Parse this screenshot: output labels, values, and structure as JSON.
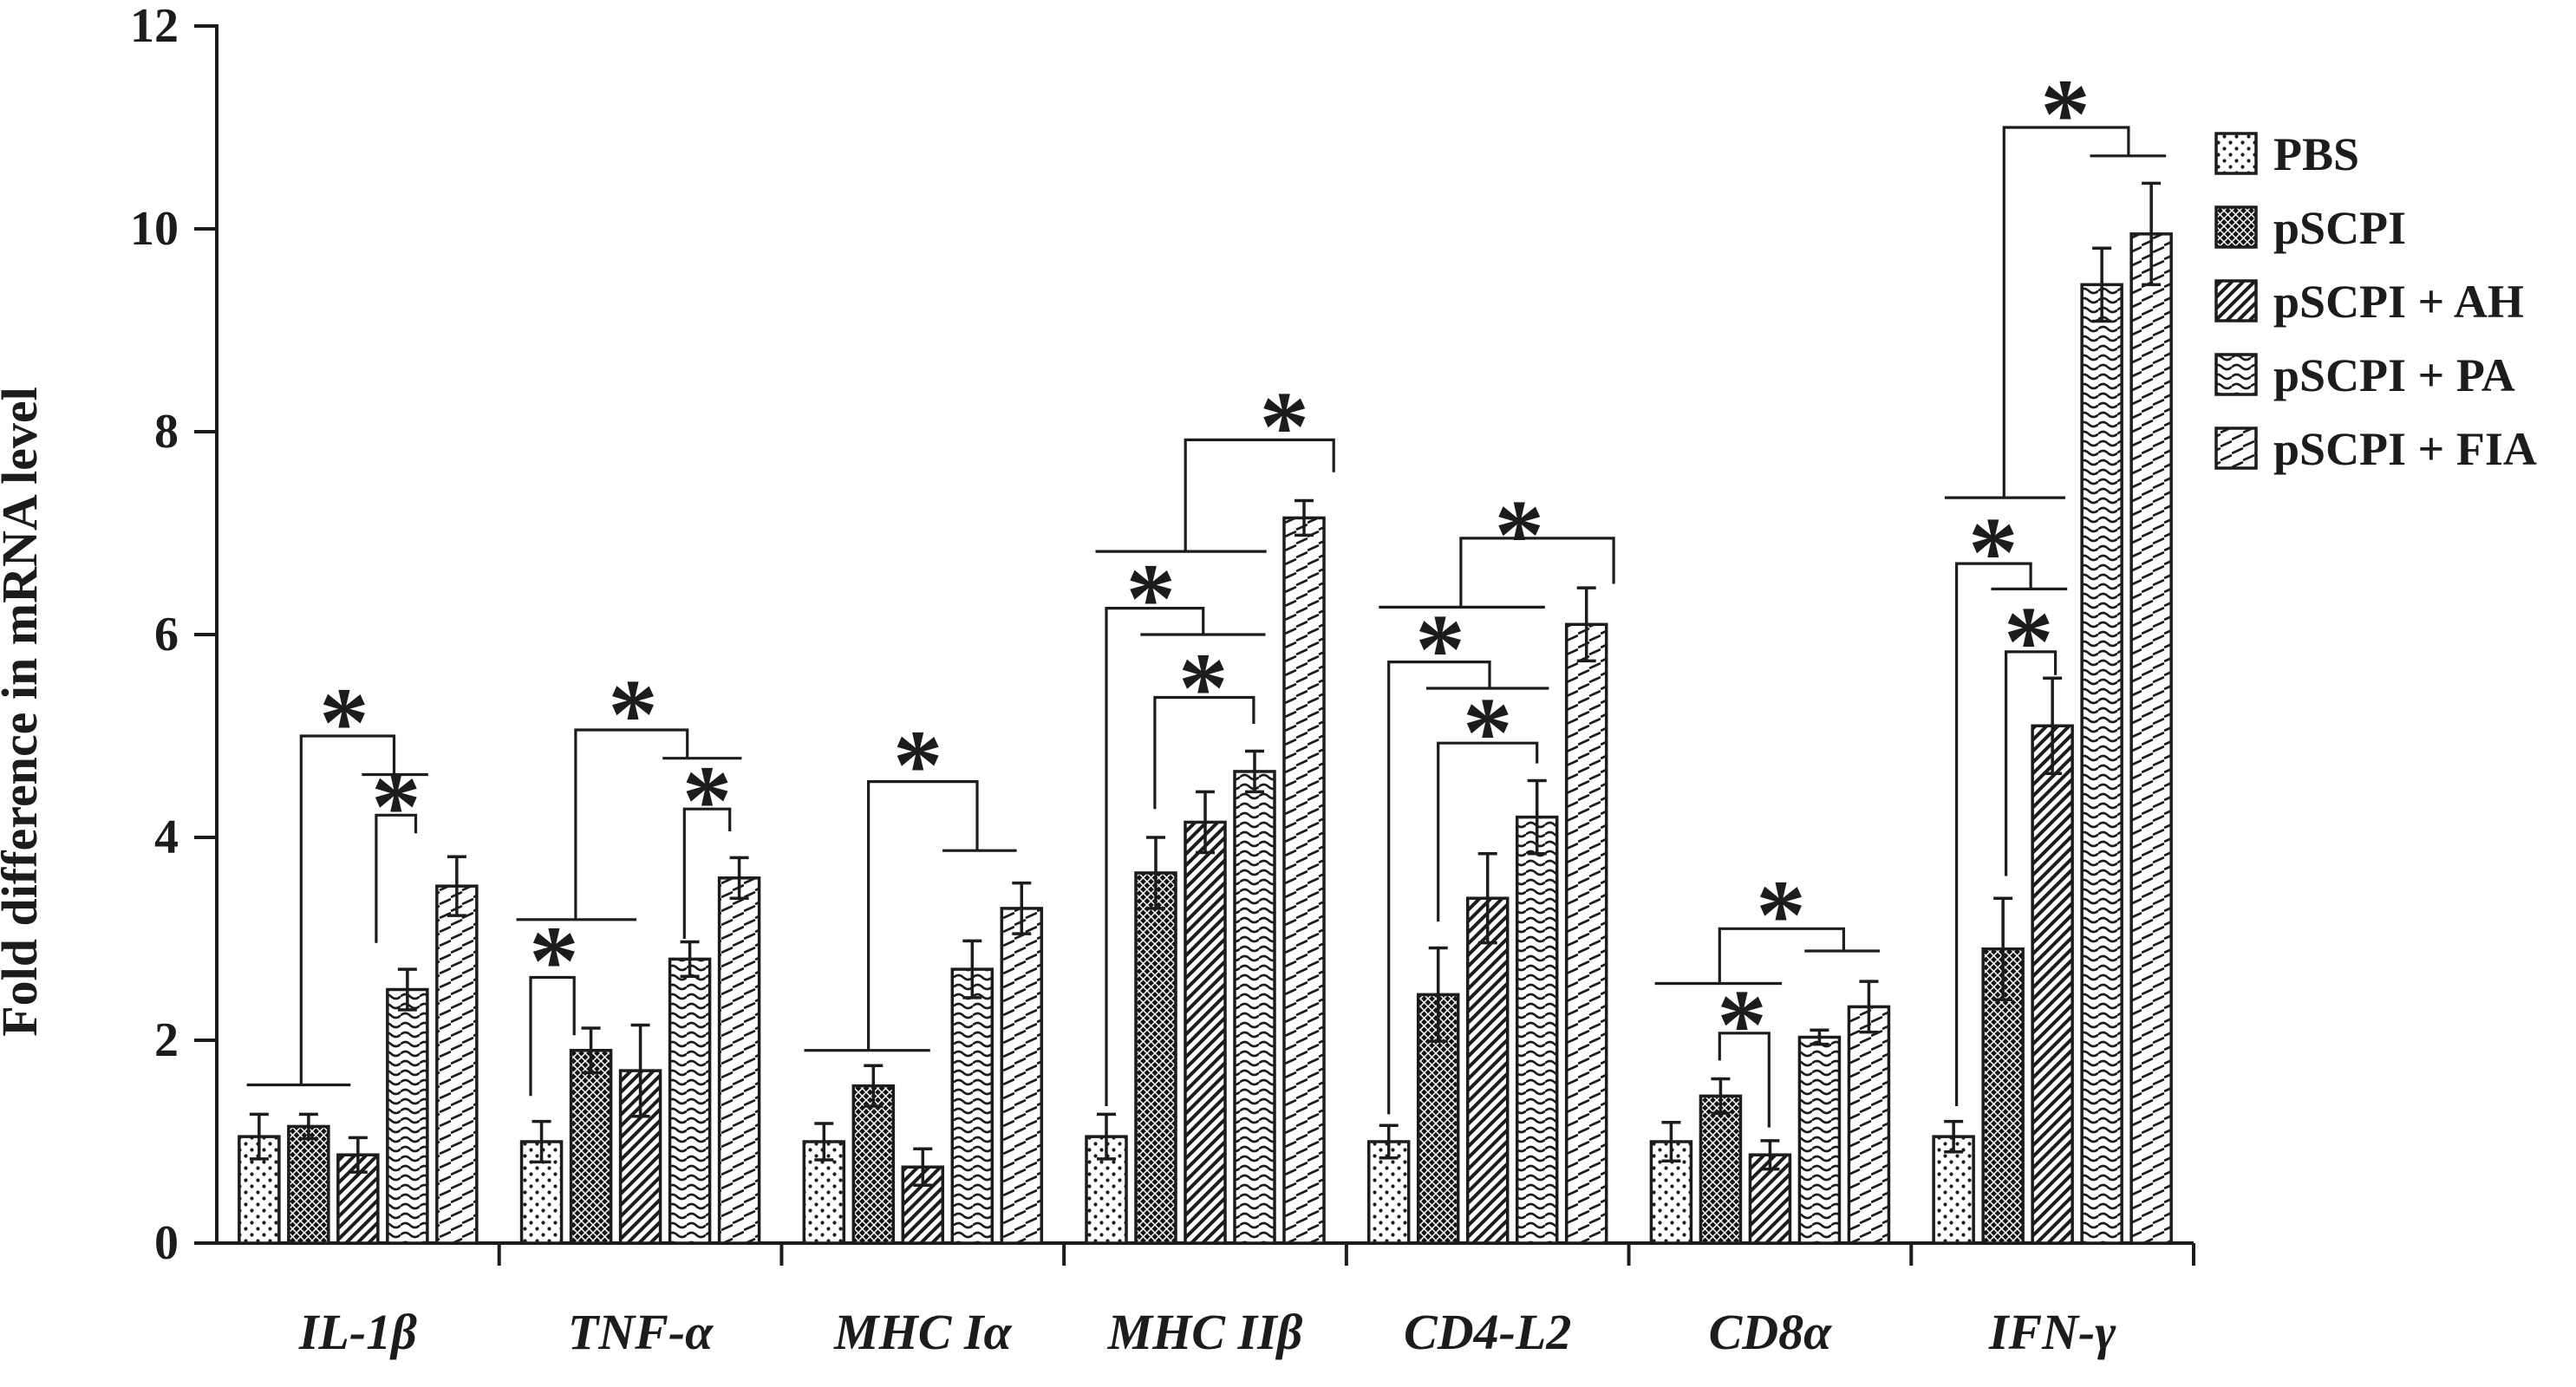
{
  "figure_title": "",
  "colors": {
    "ink": "#1c1c1c",
    "background": "#ffffff"
  },
  "legend": {
    "position": "upper right",
    "items": [
      {
        "label": "PBS",
        "pattern": "dots"
      },
      {
        "label": "pSCPI",
        "pattern": "dark"
      },
      {
        "label": "pSCPI + AH",
        "pattern": "diag"
      },
      {
        "label": "pSCPI + PA",
        "pattern": "wavy"
      },
      {
        "label": "pSCPI + FIA",
        "pattern": "dash"
      }
    ]
  },
  "chart_data": {
    "type": "bar",
    "title": "",
    "xlabel": "",
    "ylabel": "Fold difference in mRNA level",
    "ylim": [
      0,
      12
    ],
    "yticks": [
      0,
      2,
      4,
      6,
      8,
      10,
      12
    ],
    "grid": false,
    "legend_position": "upper right",
    "categories": [
      "IL-1β",
      "TNF-α",
      "MHC Iα",
      "MHC IIβ",
      "CD4-L2",
      "CD8α",
      "IFN-γ"
    ],
    "series": [
      {
        "name": "PBS",
        "pattern": "dots",
        "values": [
          1.05,
          1.0,
          1.0,
          1.05,
          1.0,
          1.0,
          1.05
        ],
        "errors": [
          0.22,
          0.2,
          0.18,
          0.22,
          0.16,
          0.19,
          0.15
        ]
      },
      {
        "name": "pSCPI",
        "pattern": "dark",
        "values": [
          1.15,
          1.9,
          1.55,
          3.65,
          2.45,
          1.45,
          2.9
        ],
        "errors": [
          0.12,
          0.22,
          0.2,
          0.35,
          0.46,
          0.17,
          0.5
        ]
      },
      {
        "name": "pSCPI + AH",
        "pattern": "diag",
        "values": [
          0.87,
          1.7,
          0.75,
          4.15,
          3.4,
          0.87,
          5.1
        ],
        "errors": [
          0.17,
          0.45,
          0.18,
          0.3,
          0.44,
          0.14,
          0.47
        ]
      },
      {
        "name": "pSCPI + PA",
        "pattern": "wavy",
        "values": [
          2.5,
          2.8,
          2.7,
          4.65,
          4.2,
          2.03,
          9.45
        ],
        "errors": [
          0.2,
          0.17,
          0.28,
          0.2,
          0.36,
          0.07,
          0.36
        ]
      },
      {
        "name": "pSCPI + FIA",
        "pattern": "dash",
        "values": [
          3.52,
          3.6,
          3.3,
          7.15,
          6.1,
          2.33,
          9.95
        ],
        "errors": [
          0.29,
          0.2,
          0.25,
          0.17,
          0.36,
          0.25,
          0.5
        ]
      }
    ],
    "significance": [
      {
        "category": "IL-1β",
        "lines": [
          [
            [
              -0.25,
              1.56
            ],
            [
              1.85,
              1.56
            ]
          ],
          [
            [
              0.85,
              1.56
            ],
            [
              0.85,
              5.0
            ],
            [
              2.73,
              5.0
            ],
            [
              2.73,
              4.62
            ]
          ],
          [
            [
              2.08,
              4.62
            ],
            [
              3.42,
              4.62
            ]
          ],
          [
            [
              2.37,
              2.96
            ],
            [
              2.37,
              4.22
            ],
            [
              3.17,
              4.22
            ],
            [
              3.17,
              4.04
            ]
          ]
        ],
        "stars": [
          [
            1.72,
            5.3
          ],
          [
            2.77,
            4.47
          ]
        ]
      },
      {
        "category": "TNF-α",
        "lines": [
          [
            [
              -0.22,
              1.45
            ],
            [
              -0.22,
              2.62
            ],
            [
              0.66,
              2.62
            ],
            [
              0.66,
              2.05
            ]
          ],
          [
            [
              -0.51,
              3.19
            ],
            [
              1.92,
              3.19
            ]
          ],
          [
            [
              0.69,
              3.19
            ],
            [
              0.69,
              5.06
            ],
            [
              2.95,
              5.06
            ],
            [
              2.95,
              4.78
            ]
          ],
          [
            [
              2.45,
              4.78
            ],
            [
              4.05,
              4.78
            ]
          ],
          [
            [
              2.89,
              3.0
            ],
            [
              2.89,
              4.28
            ],
            [
              3.81,
              4.28
            ],
            [
              3.81,
              4.06
            ]
          ]
        ],
        "stars": [
          [
            0.25,
            2.95
          ],
          [
            1.85,
            5.38
          ],
          [
            3.35,
            4.53
          ]
        ]
      },
      {
        "category": "MHC Iα",
        "lines": [
          [
            [
              -0.4,
              1.9
            ],
            [
              2.15,
              1.9
            ]
          ],
          [
            [
              0.9,
              1.9
            ],
            [
              0.9,
              4.55
            ],
            [
              3.1,
              4.55
            ],
            [
              3.1,
              3.87
            ]
          ],
          [
            [
              2.4,
              3.87
            ],
            [
              3.9,
              3.87
            ]
          ]
        ],
        "stars": [
          [
            1.9,
            4.88
          ]
        ]
      },
      {
        "category": "MHC IIβ",
        "lines": [
          [
            [
              -0.22,
              6.82
            ],
            [
              3.24,
              6.82
            ]
          ],
          [
            [
              1.6,
              6.82
            ],
            [
              1.6,
              7.92
            ],
            [
              4.6,
              7.92
            ],
            [
              4.6,
              7.6
            ]
          ],
          [
            [
              0.0,
              1.35
            ],
            [
              0.0,
              6.26
            ],
            [
              1.96,
              6.26
            ],
            [
              1.96,
              6.0
            ]
          ],
          [
            [
              0.69,
              6.0
            ],
            [
              3.22,
              6.0
            ]
          ],
          [
            [
              0.98,
              4.28
            ],
            [
              0.98,
              5.38
            ],
            [
              2.98,
              5.38
            ],
            [
              2.98,
              5.12
            ]
          ]
        ],
        "stars": [
          [
            3.6,
            8.22
          ],
          [
            0.9,
            6.52
          ],
          [
            1.96,
            5.64
          ]
        ]
      },
      {
        "category": "CD4-L2",
        "lines": [
          [
            [
              -0.2,
              6.27
            ],
            [
              3.16,
              6.27
            ]
          ],
          [
            [
              1.46,
              6.27
            ],
            [
              1.46,
              6.95
            ],
            [
              4.55,
              6.95
            ],
            [
              4.55,
              6.5
            ]
          ],
          [
            [
              0.0,
              1.27
            ],
            [
              0.0,
              5.73
            ],
            [
              2.04,
              5.73
            ],
            [
              2.04,
              5.47
            ]
          ],
          [
            [
              0.76,
              5.47
            ],
            [
              3.24,
              5.47
            ]
          ],
          [
            [
              1.0,
              3.17
            ],
            [
              1.0,
              4.93
            ],
            [
              3.0,
              4.93
            ],
            [
              3.0,
              4.73
            ]
          ]
        ],
        "stars": [
          [
            2.64,
            7.15
          ],
          [
            1.04,
            6.02
          ],
          [
            2.0,
            5.2
          ]
        ]
      },
      {
        "category": "CD8α",
        "lines": [
          [
            [
              -0.33,
              2.56
            ],
            [
              2.24,
              2.56
            ]
          ],
          [
            [
              0.98,
              2.56
            ],
            [
              0.98,
              3.1
            ],
            [
              3.49,
              3.1
            ],
            [
              3.49,
              2.88
            ]
          ],
          [
            [
              2.7,
              2.88
            ],
            [
              4.22,
              2.88
            ]
          ],
          [
            [
              0.98,
              1.8
            ],
            [
              0.98,
              2.07
            ],
            [
              1.98,
              2.07
            ],
            [
              1.98,
              1.14
            ]
          ]
        ],
        "stars": [
          [
            2.22,
            3.4
          ],
          [
            1.43,
            2.32
          ]
        ]
      },
      {
        "category": "IFN-γ",
        "lines": [
          [
            [
              -0.18,
              7.35
            ],
            [
              2.26,
              7.35
            ]
          ],
          [
            [
              1.02,
              7.35
            ],
            [
              1.02,
              11.0
            ],
            [
              3.54,
              11.0
            ],
            [
              3.54,
              10.72
            ]
          ],
          [
            [
              2.76,
              10.72
            ],
            [
              4.3,
              10.72
            ]
          ],
          [
            [
              0.06,
              1.35
            ],
            [
              0.06,
              6.7
            ],
            [
              1.56,
              6.7
            ],
            [
              1.56,
              6.45
            ]
          ],
          [
            [
              0.76,
              6.45
            ],
            [
              2.3,
              6.45
            ]
          ],
          [
            [
              1.06,
              3.62
            ],
            [
              1.06,
              5.83
            ],
            [
              2.06,
              5.83
            ],
            [
              2.06,
              5.6
            ]
          ]
        ],
        "stars": [
          [
            2.26,
            11.3
          ],
          [
            0.8,
            6.98
          ],
          [
            1.52,
            6.1
          ]
        ]
      }
    ]
  }
}
